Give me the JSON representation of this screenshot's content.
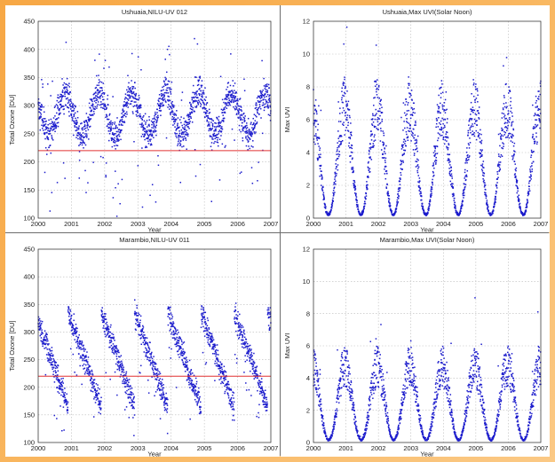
{
  "panels": {
    "p0": {
      "title": "Ushuaia,NILU-UV 012"
    },
    "p1": {
      "title": "Ushuaia,Max UVI(Solar Noon)"
    },
    "p2": {
      "title": "Marambio,NILU-UV 011"
    },
    "p3": {
      "title": "Marambio,Max UVI(Solar Noon)"
    }
  },
  "colors": {
    "points": "#1c1ccc",
    "ref_line": "#e03030",
    "grid": "#b9b9b9",
    "frame_bg": "#f9b862"
  },
  "chart_data": [
    {
      "type": "scatter",
      "title": "Ushuaia,NILU-UV 012",
      "xlabel": "Year",
      "ylabel": "Total Ozone [DU]",
      "xlim": [
        2000,
        2007
      ],
      "ylim": [
        100,
        450
      ],
      "xticks": [
        "2000",
        "2001",
        "2002",
        "2003",
        "2004",
        "2005",
        "2006",
        "2007"
      ],
      "yticks": [
        "100",
        "150",
        "200",
        "250",
        "300",
        "350",
        "400",
        "450"
      ],
      "grid": true,
      "reference_line": 220,
      "series_model": {
        "kind": "ozone",
        "mean": 285,
        "amplitude": 38,
        "peak_phase": 0.82,
        "noise": 28,
        "points_per_year": 240
      }
    },
    {
      "type": "scatter",
      "title": "Ushuaia,Max UVI(Solar Noon)",
      "xlabel": "Year",
      "ylabel": "Max UVI",
      "xlim": [
        2000,
        2007
      ],
      "ylim": [
        0,
        12
      ],
      "xticks": [
        "2000",
        "2001",
        "2002",
        "2003",
        "2004",
        "2005",
        "2006",
        "2007"
      ],
      "yticks": [
        "0",
        "2",
        "4",
        "6",
        "8",
        "10",
        "12"
      ],
      "grid": true,
      "series_model": {
        "kind": "uvi",
        "peak": 8.5,
        "min": 0.15,
        "peak_phase": 0.96,
        "noise": 1.2,
        "points_per_year": 240
      }
    },
    {
      "type": "scatter",
      "title": "Marambio,NILU-UV 011",
      "xlabel": "Year",
      "ylabel": "Total Ozone [DU]",
      "xlim": [
        2000,
        2007
      ],
      "ylim": [
        100,
        450
      ],
      "xticks": [
        "2000",
        "2001",
        "2002",
        "2003",
        "2004",
        "2005",
        "2006",
        "2007"
      ],
      "yticks": [
        "100",
        "150",
        "200",
        "250",
        "300",
        "350",
        "400",
        "450"
      ],
      "grid": true,
      "reference_line": 220,
      "series_model": {
        "kind": "ozone_sawtooth",
        "high": 335,
        "low": 165,
        "peak_phase": 0.9,
        "noise": 22,
        "points_per_year": 240
      }
    },
    {
      "type": "scatter",
      "title": "Marambio,Max UVI(Solar Noon)",
      "xlabel": "Year",
      "ylabel": "Max UVI",
      "xlim": [
        2000,
        2007
      ],
      "ylim": [
        0,
        12
      ],
      "xticks": [
        "2000",
        "2001",
        "2002",
        "2003",
        "2004",
        "2005",
        "2006",
        "2007"
      ],
      "yticks": [
        "0",
        "2",
        "4",
        "6",
        "8",
        "10",
        "12"
      ],
      "grid": true,
      "series_model": {
        "kind": "uvi",
        "peak": 6.0,
        "min": 0.1,
        "peak_phase": 0.97,
        "noise": 1.0,
        "points_per_year": 240
      }
    }
  ]
}
